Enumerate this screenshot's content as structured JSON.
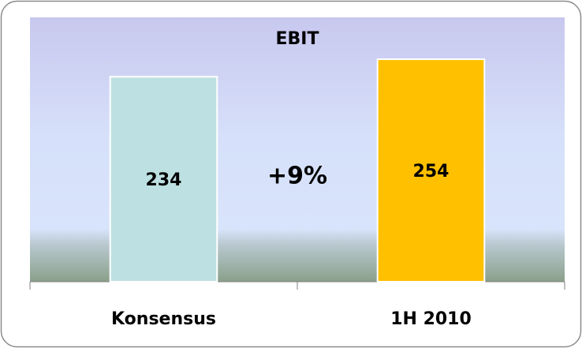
{
  "chart_data": {
    "type": "bar",
    "title": "EBIT",
    "categories": [
      "Konsensus",
      "1H 2010"
    ],
    "values": [
      234,
      254
    ],
    "colors": [
      "#bde0e2",
      "#ffc000"
    ],
    "annotation": "+9%",
    "ylim": [
      0,
      300
    ]
  }
}
